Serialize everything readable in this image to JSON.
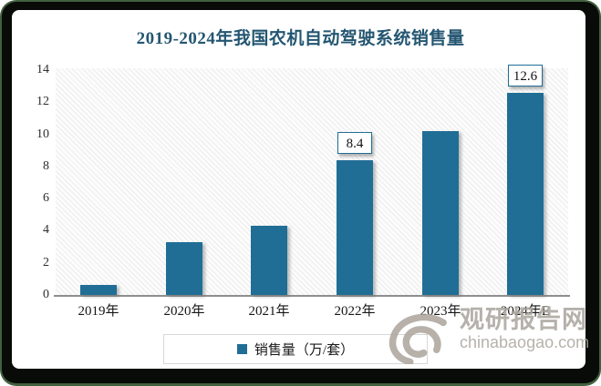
{
  "title": "2019-2024年我国农机自动驾驶系统销售量",
  "chart_data": {
    "type": "bar",
    "title": "2019-2024年我国农机自动驾驶系统销售量",
    "categories": [
      "2019年",
      "2020年",
      "2021年",
      "2022年",
      "2023年",
      "2024年E"
    ],
    "values": [
      0.6,
      3.3,
      4.3,
      8.4,
      10.2,
      12.6
    ],
    "data_labels": [
      null,
      null,
      null,
      "8.4",
      null,
      "12.6"
    ],
    "xlabel": "",
    "ylabel": "",
    "ylim": [
      0,
      14
    ],
    "yticks": [
      0,
      2,
      4,
      6,
      8,
      10,
      12,
      14
    ],
    "grid": false,
    "plot_background": "diagonal-hatch",
    "legend_position": "bottom",
    "series_name": "销售量（万/套）"
  },
  "legend": {
    "label": "销售量（万/套）"
  },
  "watermark": {
    "name": "观研报告网",
    "domain": "chinabaogao.com"
  },
  "colors": {
    "bar": "#206E96",
    "title_text": "#245671",
    "label_box_border": "#206E96",
    "watermark_gray": "#ABA49C",
    "frame": "#080B08"
  }
}
